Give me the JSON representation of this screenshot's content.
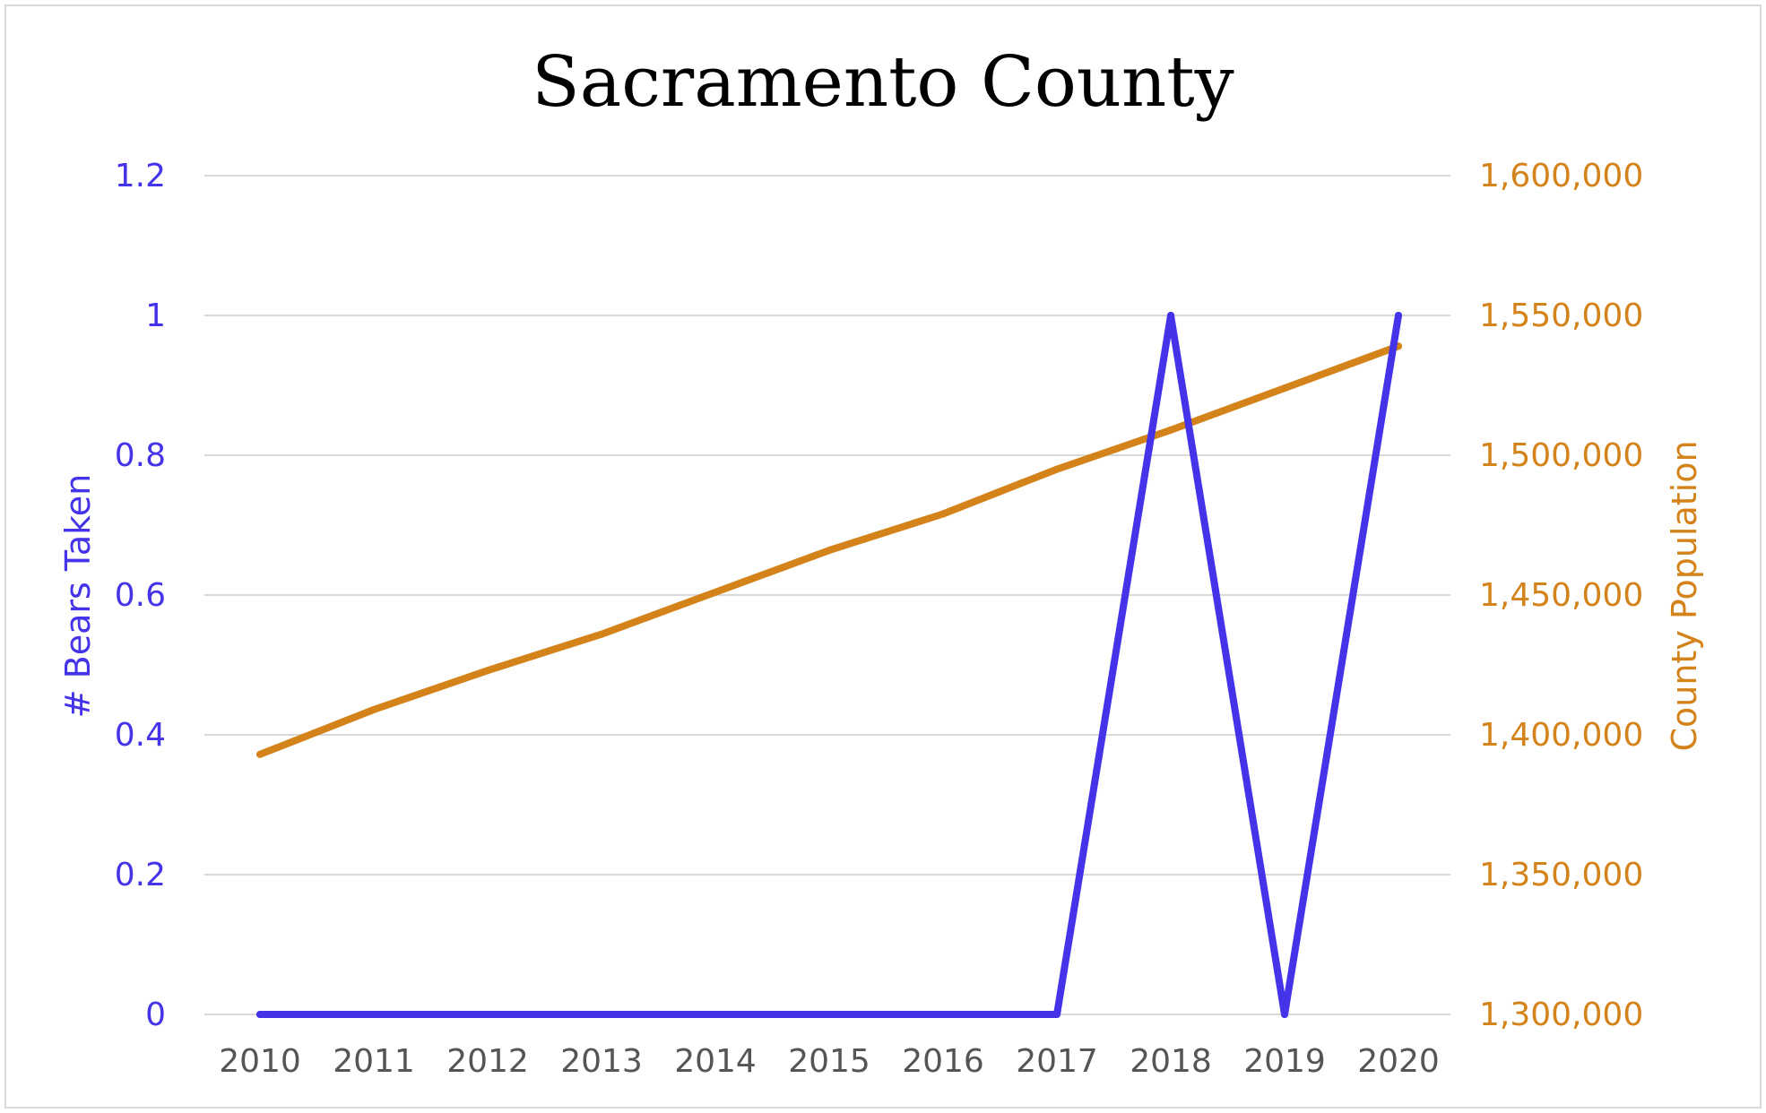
{
  "chart_data": {
    "type": "line",
    "title": "Sacramento County",
    "x": [
      "2010",
      "2011",
      "2012",
      "2013",
      "2014",
      "2015",
      "2016",
      "2017",
      "2018",
      "2019",
      "2020"
    ],
    "series": [
      {
        "axis": "left",
        "color": "#4433e8",
        "values": [
          0,
          0,
          0,
          0,
          0,
          0,
          0,
          0,
          1,
          0,
          1
        ]
      },
      {
        "axis": "right",
        "color": "#d3831a",
        "values": [
          1393000,
          1409000,
          1423000,
          1436000,
          1451000,
          1466000,
          1479000,
          1495000,
          1509000,
          1524000,
          1539000
        ]
      }
    ],
    "ylabel": "# Bears Taken",
    "y2label": "County Population",
    "ylim": [
      0,
      1.2
    ],
    "y2lim": [
      1300000,
      1600000
    ],
    "yticks": [
      "0",
      "0.2",
      "0.4",
      "0.6",
      "0.8",
      "1",
      "1.2"
    ],
    "y2ticks": [
      "1,300,000",
      "1,350,000",
      "1,400,000",
      "1,450,000",
      "1,500,000",
      "1,550,000",
      "1,600,000"
    ],
    "grid": true,
    "legend": "none",
    "colors": {
      "left_axis": "#4433e8",
      "right_axis": "#d3831a",
      "grid": "#d9d9d9",
      "x_ticks": "#555555"
    }
  }
}
